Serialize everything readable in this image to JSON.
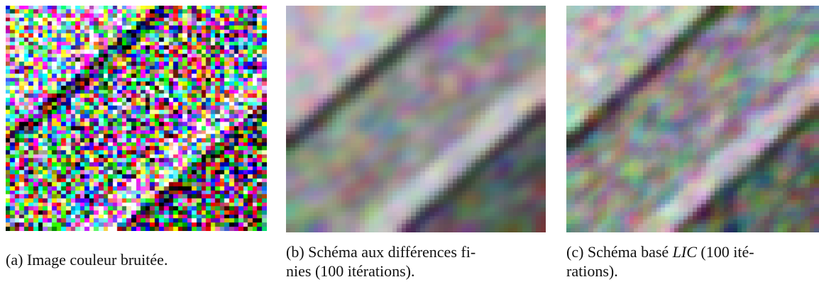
{
  "figure": {
    "panels": [
      {
        "id": "a",
        "image": "noisy-color-image",
        "caption_label": "(a)",
        "caption_text": "Image couleur bruitée.",
        "smoothing": 0,
        "noise": 1.0
      },
      {
        "id": "b",
        "image": "finite-difference-result",
        "caption_label": "(b)",
        "caption_line1": "Schéma aux différences fi-",
        "caption_line2": "nies (100 itérations).",
        "smoothing": 3,
        "noise": 0.55
      },
      {
        "id": "c",
        "image": "lic-based-result",
        "caption_label": "(c)",
        "caption_line1_pre": "Schéma basé ",
        "caption_line1_em": "LIC",
        "caption_line1_post": " (100 ité-",
        "caption_line2": "rations).",
        "smoothing": 2,
        "noise": 0.7
      }
    ]
  }
}
